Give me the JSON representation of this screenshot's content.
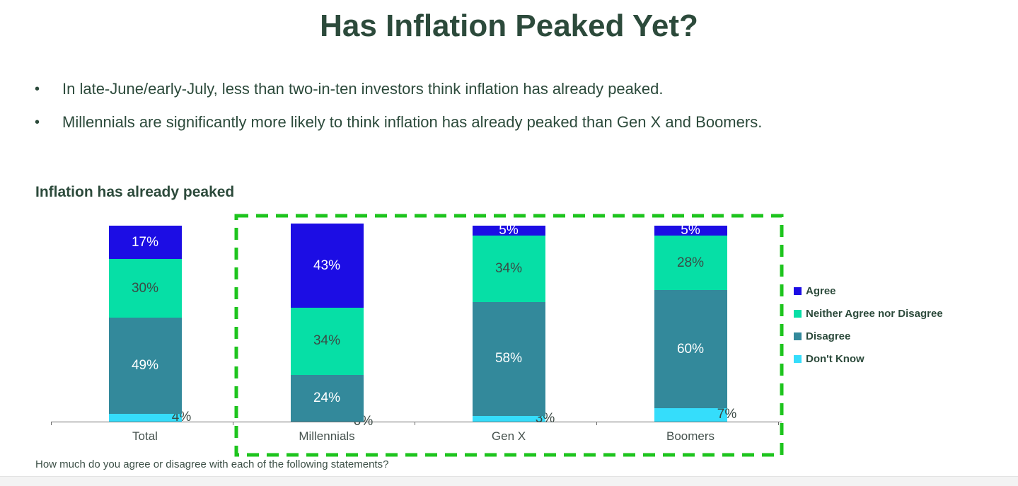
{
  "title": "Has Inflation Peaked Yet?",
  "bullets": [
    "In late-June/early-July, less than two-in-ten investors think inflation has already peaked.",
    "Millennials are significantly more likely to think inflation has already peaked than Gen X and Boomers."
  ],
  "section_title": "Inflation has already peaked",
  "footnote": "How much do you agree or disagree with each of the following statements?",
  "colors": {
    "title_text": "#2c4a3b",
    "highlight_box": "#1ec41e",
    "axis": "#6b6b6b",
    "agree": "#1c0de4",
    "neither": "#06dfa6",
    "disagree": "#33899b",
    "dont_know": "#35ddfb"
  },
  "chart_data": {
    "type": "bar",
    "stacked": true,
    "title": "Inflation has already peaked",
    "categories": [
      "Total",
      "Millennials",
      "Gen X",
      "Boomers"
    ],
    "series": [
      {
        "name": "Agree",
        "color": "#1c0de4",
        "label_color": "#ffffff",
        "label_position": "inside",
        "values": [
          17,
          43,
          5,
          5
        ]
      },
      {
        "name": "Neither Agree nor Disagree",
        "color": "#06dfa6",
        "label_color": "#3b4a45",
        "label_position": "inside",
        "values": [
          30,
          34,
          34,
          28
        ]
      },
      {
        "name": "Disagree",
        "color": "#33899b",
        "label_color": "#ffffff",
        "label_position": "inside",
        "values": [
          49,
          24,
          58,
          60
        ]
      },
      {
        "name": "Don't Know",
        "color": "#35ddfb",
        "label_color": "#3b4a45",
        "label_position": "edge",
        "values": [
          4,
          0,
          3,
          7
        ]
      }
    ],
    "value_suffix": "%",
    "ylim": [
      0,
      100
    ],
    "grid": false,
    "legend_position": "right",
    "highlight_box_categories": [
      "Millennials",
      "Gen X",
      "Boomers"
    ]
  }
}
